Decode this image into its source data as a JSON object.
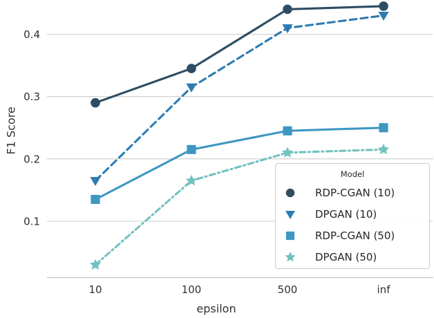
{
  "chart_data": {
    "type": "line",
    "title": "",
    "xlabel": "epsilon",
    "ylabel": "F1 Score",
    "x_categories": [
      "10",
      "100",
      "500",
      "inf"
    ],
    "y_ticks": [
      0.4,
      0.3,
      0.2,
      0.1
    ],
    "ylim": [
      0.01,
      0.455
    ],
    "grid": "horizontal-only",
    "legend": {
      "title": "Model",
      "position": "lower right"
    },
    "series": [
      {
        "name": "RDP-CGAN (10)",
        "marker": "circle",
        "line_style": "solid",
        "color": "#2d4d63",
        "values": [
          0.29,
          0.345,
          0.44,
          0.445
        ]
      },
      {
        "name": "DPGAN (10)",
        "marker": "triangle-down",
        "line_style": "dashed",
        "color": "#2e7bb1",
        "values": [
          0.165,
          0.315,
          0.41,
          0.43
        ]
      },
      {
        "name": "RDP-CGAN (50)",
        "marker": "square",
        "line_style": "solid",
        "color": "#3d97c2",
        "values": [
          0.135,
          0.215,
          0.245,
          0.25
        ]
      },
      {
        "name": "DPGAN (50)",
        "marker": "star",
        "line_style": "dashdot",
        "color": "#72c2bf",
        "values": [
          0.03,
          0.165,
          0.21,
          0.215
        ]
      }
    ],
    "colors": {
      "grid": "#cccccc",
      "axis_line": "#c4c4c4",
      "tick_text": "#303030"
    }
  }
}
